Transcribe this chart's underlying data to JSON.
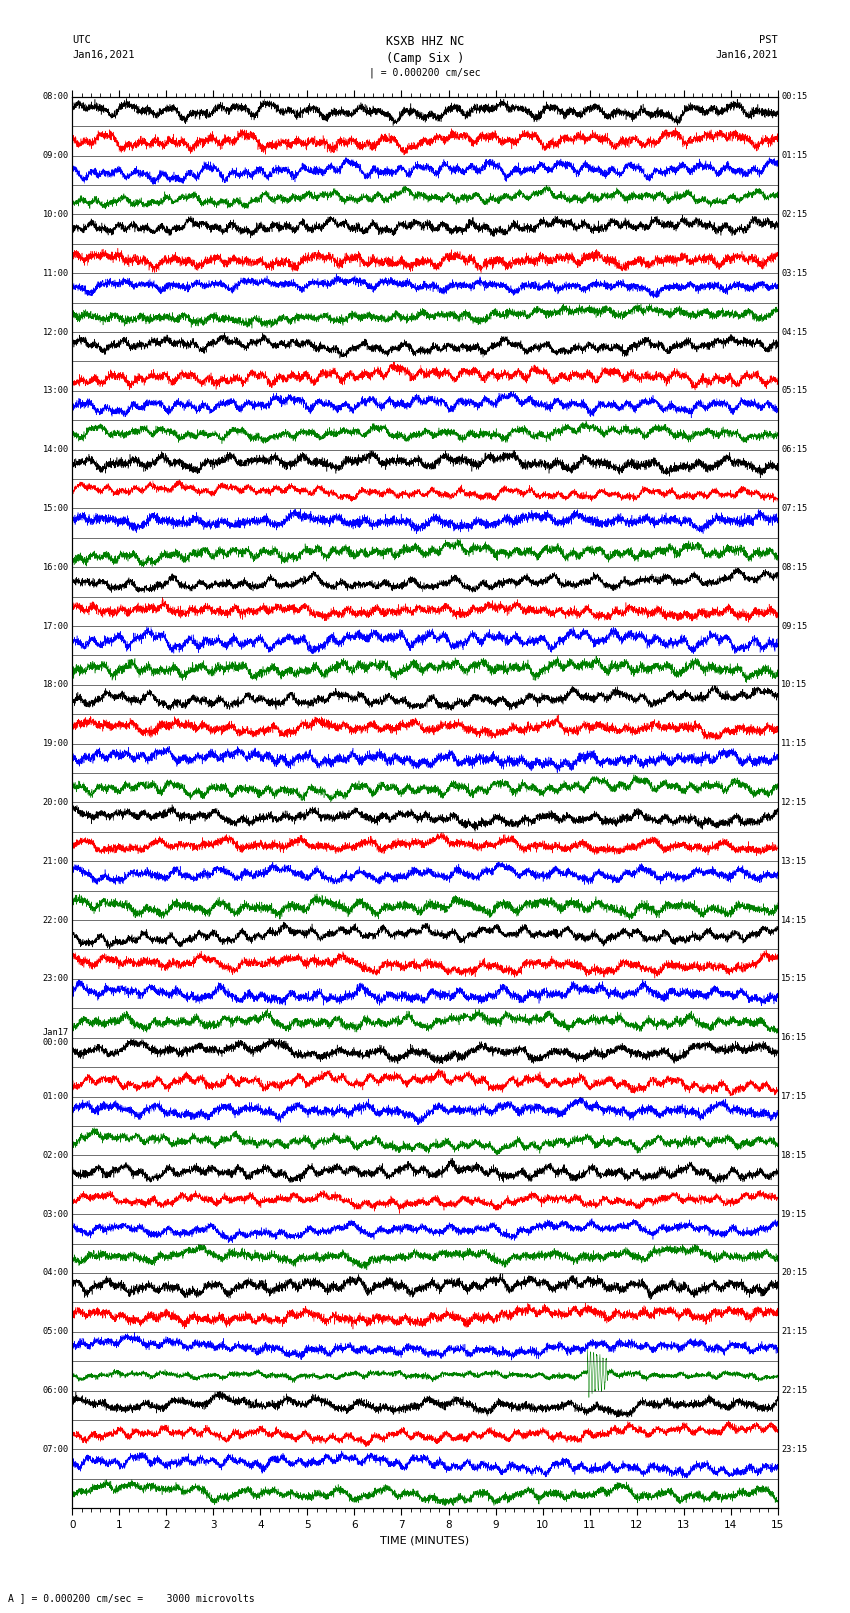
{
  "title_line1": "KSXB HHZ NC",
  "title_line2": "(Camp Six )",
  "scale_text": "| = 0.000200 cm/sec",
  "left_label_top": "UTC",
  "left_label_date": "Jan16,2021",
  "right_label_top": "PST",
  "right_label_date": "Jan16,2021",
  "bottom_label": "TIME (MINUTES)",
  "bottom_note": "A ] = 0.000200 cm/sec =    3000 microvolts",
  "x_ticks": [
    0,
    1,
    2,
    3,
    4,
    5,
    6,
    7,
    8,
    9,
    10,
    11,
    12,
    13,
    14,
    15
  ],
  "x_min": 0,
  "x_max": 15,
  "left_times_utc": [
    "08:00",
    "",
    "09:00",
    "",
    "10:00",
    "",
    "11:00",
    "",
    "12:00",
    "",
    "13:00",
    "",
    "14:00",
    "",
    "15:00",
    "",
    "16:00",
    "",
    "17:00",
    "",
    "18:00",
    "",
    "19:00",
    "",
    "20:00",
    "",
    "21:00",
    "",
    "22:00",
    "",
    "23:00",
    "",
    "Jan17\n00:00",
    "",
    "01:00",
    "",
    "02:00",
    "",
    "03:00",
    "",
    "04:00",
    "",
    "05:00",
    "",
    "06:00",
    "",
    "07:00",
    ""
  ],
  "right_times_pst": [
    "00:15",
    "",
    "01:15",
    "",
    "02:15",
    "",
    "03:15",
    "",
    "04:15",
    "",
    "05:15",
    "",
    "06:15",
    "",
    "07:15",
    "",
    "08:15",
    "",
    "09:15",
    "",
    "10:15",
    "",
    "11:15",
    "",
    "12:15",
    "",
    "13:15",
    "",
    "14:15",
    "",
    "15:15",
    "",
    "16:15",
    "",
    "17:15",
    "",
    "18:15",
    "",
    "19:15",
    "",
    "20:15",
    "",
    "21:15",
    "",
    "22:15",
    "",
    "23:15",
    ""
  ],
  "num_traces": 48,
  "colors_cycle": [
    "black",
    "red",
    "blue",
    "green"
  ],
  "fig_width": 8.5,
  "fig_height": 16.13,
  "dpi": 100,
  "earthquake_trace": 43,
  "earthquake_time": 11.0
}
